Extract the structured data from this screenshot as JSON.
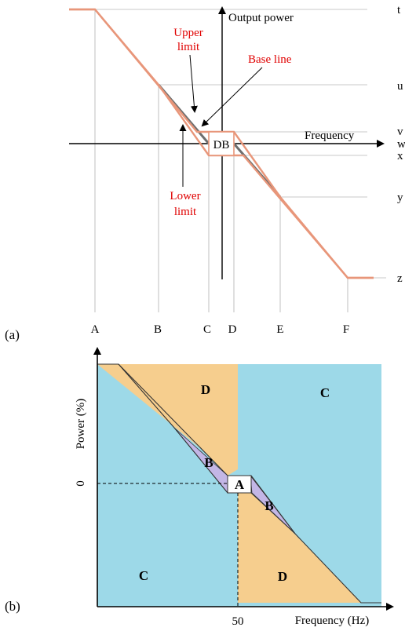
{
  "panel_a": {
    "tag": "(a)",
    "y_axis_title": "Output power",
    "x_axis_title": "Frequency",
    "db_label": "DB",
    "upper_limit_line1": "Upper",
    "upper_limit_line2": "limit",
    "base_line": "Base line",
    "lower_limit_line1": "Lower",
    "lower_limit_line2": "limit",
    "right_labels": [
      "t",
      "u",
      "v",
      "w",
      "x",
      "y",
      "z"
    ],
    "bottom_labels": [
      "A",
      "B",
      "C",
      "D",
      "E",
      "F"
    ],
    "colors": {
      "limit": "#e8967a",
      "base": "#6e6e6e",
      "annotation": "#e00000"
    }
  },
  "panel_b": {
    "tag": "(b)",
    "y_axis_title": "Power (%)",
    "x_axis_title": "Frequency (Hz)",
    "y_tick": "0",
    "x_tick": "50",
    "region_labels": {
      "d_top": "D",
      "c_right": "C",
      "b_upper": "B",
      "a_center": "A",
      "b_lower": "B",
      "c_bottom": "C",
      "d_bottom": "D"
    },
    "colors": {
      "region_c": "#9dd9e8",
      "region_d": "#f6ce8e",
      "region_b": "#c3b6e6"
    }
  }
}
